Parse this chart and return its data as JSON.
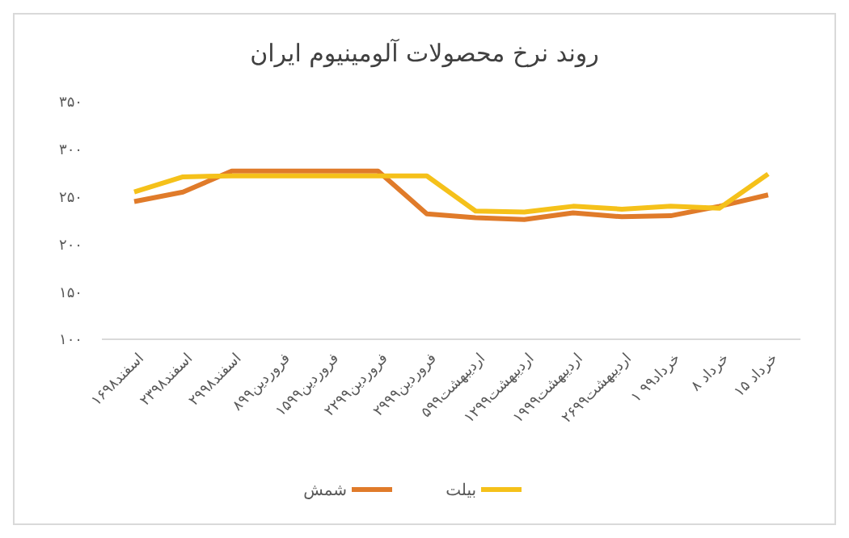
{
  "chart_data": {
    "type": "line",
    "title": "روند نرخ محصولات آلومینیوم ایران",
    "categories": [
      "۱۶اسفند۹۸",
      "۲۳اسفند۹۸",
      "۲۹اسفند۹۸",
      "۸فروردین۹۹",
      "۱۵فروردین۹۹",
      "۲۲فروردین۹۹",
      "۲۹فروردین۹۹",
      "۵اردیبهشت۹۹",
      "۱۲اردیبهشت۹۹",
      "۱۹اردیبهشت۹۹",
      "۲۶اردیبهشت۹۹",
      "۱ خرداد۹۹",
      "۸ خرداد",
      "۱۵ خرداد"
    ],
    "series": [
      {
        "name": "شمش",
        "color": "#e07b2a",
        "values": [
          245,
          255,
          277,
          277,
          277,
          277,
          232,
          228,
          226,
          233,
          229,
          230,
          240,
          252
        ]
      },
      {
        "name": "بیلت",
        "color": "#f5c11a",
        "values": [
          255,
          271,
          272,
          272,
          272,
          272,
          272,
          235,
          234,
          240,
          237,
          240,
          238,
          274
        ]
      }
    ],
    "ylim": [
      100,
      350
    ],
    "yticks": [
      {
        "value": 100,
        "label": "۱۰۰"
      },
      {
        "value": 150,
        "label": "۱۵۰"
      },
      {
        "value": 200,
        "label": "۲۰۰"
      },
      {
        "value": 250,
        "label": "۲۵۰"
      },
      {
        "value": 300,
        "label": "۳۰۰"
      },
      {
        "value": 350,
        "label": "۳۵۰"
      }
    ],
    "grid": false,
    "legend": "bottom",
    "marker": "none",
    "line_style": "solid"
  }
}
